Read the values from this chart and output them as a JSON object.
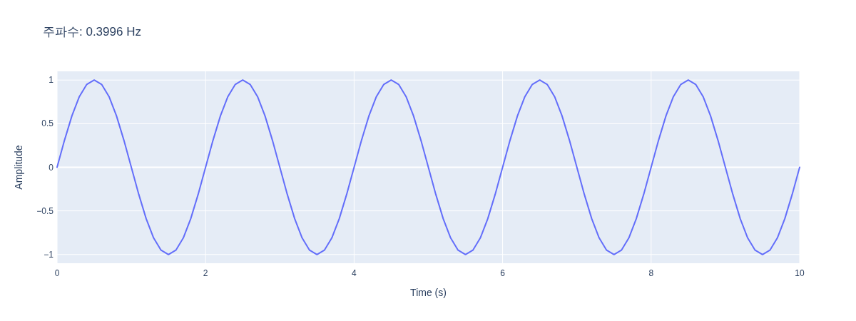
{
  "chart_data": {
    "type": "line",
    "title": "주파수: 0.3996 Hz",
    "xlabel": "Time (s)",
    "ylabel": "Amplitude",
    "x": [
      0,
      0.1,
      0.2,
      0.3,
      0.4,
      0.5,
      0.6,
      0.7,
      0.8,
      0.9,
      1,
      1.1,
      1.2,
      1.3,
      1.4,
      1.5,
      1.6,
      1.7,
      1.8,
      1.9,
      2,
      2.1,
      2.2,
      2.3,
      2.4,
      2.5,
      2.6,
      2.7,
      2.8,
      2.9,
      3,
      3.1,
      3.2,
      3.3,
      3.4,
      3.5,
      3.6,
      3.7,
      3.8,
      3.9,
      4,
      4.1,
      4.2,
      4.3,
      4.4,
      4.5,
      4.6,
      4.7,
      4.8,
      4.9,
      5,
      5.1,
      5.2,
      5.3,
      5.4,
      5.5,
      5.6,
      5.7,
      5.8,
      5.9,
      6,
      6.1,
      6.2,
      6.3,
      6.4,
      6.5,
      6.6,
      6.7,
      6.8,
      6.9,
      7,
      7.1,
      7.2,
      7.3,
      7.4,
      7.5,
      7.6,
      7.7,
      7.8,
      7.9,
      8,
      8.1,
      8.2,
      8.3,
      8.4,
      8.5,
      8.6,
      8.7,
      8.8,
      8.9,
      9,
      9.1,
      9.2,
      9.3,
      9.4,
      9.5,
      9.6,
      9.7,
      9.8,
      9.9,
      10
    ],
    "series": [
      {
        "color": "#636efa",
        "values": [
          0,
          0.31,
          0.59,
          0.81,
          0.95,
          1,
          0.95,
          0.81,
          0.59,
          0.31,
          0,
          -0.31,
          -0.59,
          -0.81,
          -0.95,
          -1,
          -0.95,
          -0.81,
          -0.59,
          -0.31,
          0,
          0.31,
          0.59,
          0.81,
          0.95,
          1,
          0.95,
          0.81,
          0.59,
          0.31,
          0,
          -0.31,
          -0.59,
          -0.81,
          -0.95,
          -1,
          -0.95,
          -0.81,
          -0.59,
          -0.31,
          0,
          0.31,
          0.59,
          0.81,
          0.95,
          1,
          0.95,
          0.81,
          0.59,
          0.31,
          0,
          -0.31,
          -0.59,
          -0.81,
          -0.95,
          -1,
          -0.95,
          -0.81,
          -0.59,
          -0.31,
          0,
          0.31,
          0.59,
          0.81,
          0.95,
          1,
          0.95,
          0.81,
          0.59,
          0.31,
          0,
          -0.31,
          -0.59,
          -0.81,
          -0.95,
          -1,
          -0.95,
          -0.81,
          -0.59,
          -0.31,
          0,
          0.31,
          0.59,
          0.81,
          0.95,
          1,
          0.95,
          0.81,
          0.59,
          0.31,
          0,
          -0.31,
          -0.59,
          -0.81,
          -0.95,
          -1,
          -0.95,
          -0.81,
          -0.59,
          -0.31,
          0
        ]
      }
    ],
    "xlim": [
      0,
      10
    ],
    "xticks": [
      0,
      2,
      4,
      6,
      8,
      10
    ],
    "ylim": [
      -1.1,
      1.1
    ],
    "yticks": [
      {
        "value": -1,
        "label": "−1"
      },
      {
        "value": -0.5,
        "label": "−0.5"
      },
      0,
      0.5,
      1
    ],
    "grid": true,
    "marker": "none",
    "line_style": "solid"
  }
}
